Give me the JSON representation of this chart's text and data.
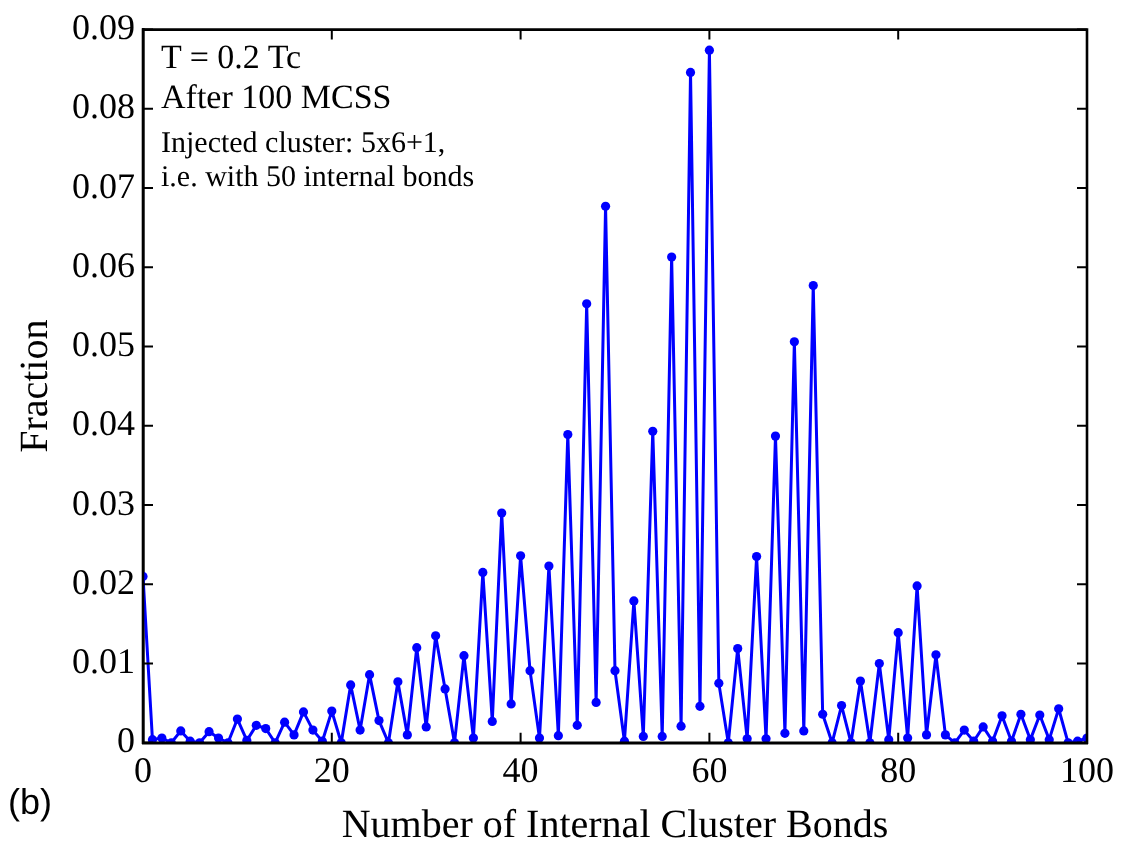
{
  "chart_data": {
    "type": "line",
    "xlabel": "Number of Internal Cluster Bonds",
    "ylabel": "Fraction",
    "annotations": [
      "T = 0.2 Tc",
      "After 100 MCSS",
      "Injected cluster: 5x6+1,",
      "i.e. with 50 internal bonds",
      "(b)"
    ],
    "x": [
      0,
      1,
      2,
      3,
      4,
      5,
      6,
      7,
      8,
      9,
      10,
      11,
      12,
      13,
      14,
      15,
      16,
      17,
      18,
      19,
      20,
      21,
      22,
      23,
      24,
      25,
      26,
      27,
      28,
      29,
      30,
      31,
      32,
      33,
      34,
      35,
      36,
      37,
      38,
      39,
      40,
      41,
      42,
      43,
      44,
      45,
      46,
      47,
      48,
      49,
      50,
      51,
      52,
      53,
      54,
      55,
      56,
      57,
      58,
      59,
      60,
      61,
      62,
      63,
      64,
      65,
      66,
      67,
      68,
      69,
      70,
      71,
      72,
      73,
      74,
      75,
      76,
      77,
      78,
      79,
      80,
      81,
      82,
      83,
      84,
      85,
      86,
      87,
      88,
      89,
      90,
      91,
      92,
      93,
      94,
      95,
      96,
      97,
      98,
      99,
      100
    ],
    "series": [
      {
        "color": "#0000ff",
        "values": [
          0.021,
          0.0004,
          0.0006,
          0,
          0.0015,
          0.0002,
          0,
          0.0014,
          0.0006,
          0,
          0.003,
          0.0003,
          0.0022,
          0.0018,
          0,
          0.0026,
          0.001,
          0.0039,
          0.0016,
          0.0002,
          0.004,
          0,
          0.0073,
          0.0016,
          0.0086,
          0.0028,
          0,
          0.0077,
          0.001,
          0.012,
          0.002,
          0.0135,
          0.0068,
          0,
          0.011,
          0.0006,
          0.0215,
          0.0027,
          0.029,
          0.0049,
          0.0236,
          0.0091,
          0.0006,
          0.0223,
          0.0009,
          0.0389,
          0.0022,
          0.0554,
          0.0051,
          0.0677,
          0.0091,
          0.0002,
          0.0179,
          0.0008,
          0.0393,
          0.0008,
          0.0613,
          0.0021,
          0.0846,
          0.0046,
          0.0874,
          0.0075,
          0,
          0.0119,
          0.0005,
          0.0235,
          0.0005,
          0.0387,
          0.0012,
          0.0506,
          0.0015,
          0.0577,
          0.0036,
          0,
          0.0047,
          0,
          0.0078,
          0,
          0.01,
          0.0004,
          0.0139,
          0.0006,
          0.0198,
          0.001,
          0.0111,
          0.001,
          0,
          0.0016,
          0.0002,
          0.002,
          0.0002,
          0.0034,
          0.0002,
          0.0036,
          0.0004,
          0.0035,
          0.0004,
          0.0043,
          0,
          0.0002,
          0.0006
        ]
      }
    ],
    "xlim": [
      0,
      100
    ],
    "xticks": [
      0,
      20,
      40,
      60,
      80,
      100
    ],
    "ylim": [
      0,
      0.09
    ],
    "yticks": [
      0,
      0.01,
      0.02,
      0.03,
      0.04,
      0.05,
      0.06,
      0.07,
      0.08,
      0.09
    ],
    "grid": false,
    "legend": false,
    "marker": "circle",
    "line_style": "solid"
  }
}
